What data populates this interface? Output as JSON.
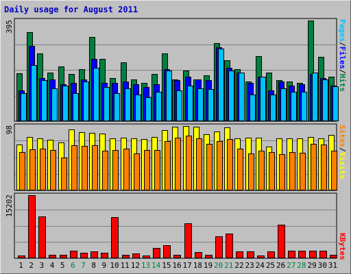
{
  "title": "Daily usage for August 2011",
  "colors": {
    "hits": "#008040",
    "files": "#0000ff",
    "pages": "#00c0ff",
    "visits": "#ffff00",
    "sites": "#ff8000",
    "kbytes": "#ff0000",
    "weekend_label": "#008040",
    "weekday_label": "#000000"
  },
  "legend": {
    "hits": "Hits",
    "files": "Files",
    "pages": "Pages",
    "visits": "Visits",
    "sites": "Sites",
    "kbytes": "KBytes",
    "sep": "/"
  },
  "chart_data": {
    "type": "bar",
    "categories": [
      "1",
      "2",
      "3",
      "4",
      "5",
      "6",
      "7",
      "8",
      "9",
      "10",
      "11",
      "12",
      "13",
      "14",
      "15",
      "16",
      "17",
      "18",
      "19",
      "20",
      "21",
      "22",
      "23",
      "24",
      "25",
      "26",
      "27",
      "28",
      "29",
      "30",
      "31"
    ],
    "weekend_days": [
      "6",
      "7",
      "13",
      "14",
      "20",
      "21",
      "27",
      "28"
    ],
    "panels": [
      {
        "name": "hits-files-pages",
        "ymax_label": "395",
        "ymax": 395,
        "series": [
          {
            "key": "hits",
            "values": [
              188,
              350,
              265,
              190,
              215,
              185,
              205,
              330,
              245,
              170,
              230,
              165,
              150,
              185,
              265,
              165,
              200,
              165,
              180,
              305,
              240,
              205,
              155,
              255,
              190,
              160,
              155,
              150,
              395,
              252,
              175
            ]
          },
          {
            "key": "files",
            "values": [
              120,
              295,
              170,
              165,
              145,
              150,
              165,
              245,
              150,
              150,
              155,
              145,
              135,
              145,
              205,
              160,
              175,
              165,
              160,
              290,
              210,
              190,
              150,
              175,
              120,
              155,
              140,
              145,
              185,
              168,
              140
            ]
          },
          {
            "key": "pages",
            "values": [
              110,
              220,
              160,
              130,
              140,
              110,
              155,
              210,
              135,
              110,
              130,
              105,
              95,
              115,
              200,
              120,
              140,
              130,
              125,
              285,
              200,
              190,
              105,
              175,
              105,
              130,
              115,
              115,
              190,
              165,
              137
            ]
          }
        ]
      },
      {
        "name": "visits-sites",
        "ymax_label": "98",
        "ymax": 98,
        "series": [
          {
            "key": "visits",
            "values": [
              70,
              81,
              79,
              77,
              73,
              93,
              89,
              88,
              87,
              79,
              80,
              79,
              78,
              81,
              92,
              97,
              98,
              97,
              85,
              90,
              96,
              79,
              80,
              80,
              67,
              79,
              79,
              79,
              81,
              79,
              84
            ]
          },
          {
            "key": "sites",
            "values": [
              58,
              63,
              64,
              62,
              50,
              69,
              68,
              69,
              60,
              62,
              64,
              56,
              61,
              62,
              75,
              80,
              83,
              79,
              71,
              75,
              78,
              64,
              56,
              60,
              58,
              55,
              58,
              57,
              71,
              70,
              60
            ]
          }
        ]
      },
      {
        "name": "kbytes",
        "ymax_label": "15202",
        "ymax": 15202,
        "series": [
          {
            "key": "kbytes",
            "values": [
              600,
              15202,
              10000,
              900,
              900,
              1800,
              1300,
              1700,
              1300,
              9900,
              900,
              1100,
              600,
              2500,
              3200,
              900,
              8500,
              1500,
              900,
              5300,
              6000,
              1700,
              1600,
              700,
              1700,
              8100,
              1800,
              1800,
              1800,
              1800,
              900
            ]
          }
        ]
      }
    ],
    "xlabel": "",
    "ylabel": "",
    "grid": true,
    "legend_position": "right-vertical"
  }
}
